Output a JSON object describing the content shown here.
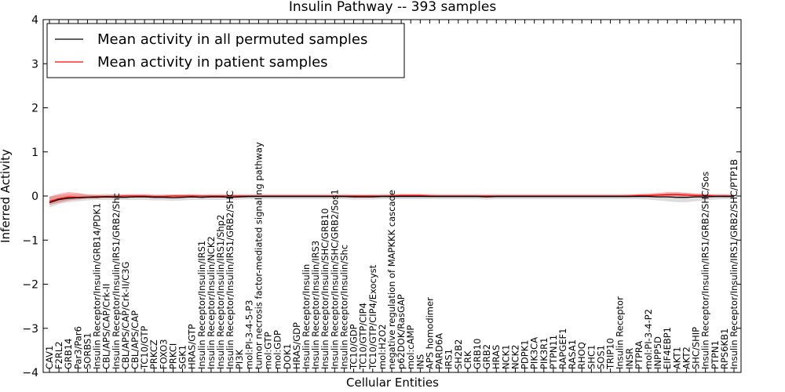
{
  "chart_data": {
    "type": "line",
    "title": "Insulin Pathway -- 393 samples",
    "xlabel": "Cellular Entities",
    "ylabel": "Inferred Activity",
    "ylim": [
      -4,
      4
    ],
    "yticks": [
      -4,
      -3,
      -2,
      -1,
      0,
      1,
      2,
      3,
      4
    ],
    "ytick_labels": [
      "−4",
      "−3",
      "−2",
      "−1",
      "0",
      "1",
      "2",
      "3",
      "4"
    ],
    "legend": {
      "placement": "top-left",
      "entries": [
        {
          "label": "Mean activity in all permuted samples",
          "color": "#000000"
        },
        {
          "label": "Mean activity in patient samples",
          "color": "#ff0000"
        }
      ]
    },
    "categories": [
      "CAV1",
      "F2RL2",
      "GRB14",
      "Par3/Par6",
      "SORBS1",
      "Insulin Receptor/Insulin/GRB14/PDK1",
      "CBL/APS/CAP/Crk-II",
      "Insulin Receptor/Insulin/IRS1/GRB2/Shc",
      "CBL/APS/CAP/Crk-II/C3G",
      "CBL/APS/CAP",
      "TC10/GTP",
      "PRKCZ",
      "FOXO3",
      "PRKCI",
      "SGK1",
      "HRAS/GTP",
      "Insulin Receptor/Insulin/IRS1",
      "Insulin Receptor/Insulin/NCK2",
      "Insulin Receptor/Insulin/IRS1/Shp2",
      "Insulin Receptor/Insulin/IRS1/GRB2/SHC",
      "PI3K",
      "mol:PI-3-4-5-P3",
      "tumor necrosis factor-mediated signaling pathway",
      "mol:GTP",
      "mol:GDP",
      "DOK1",
      "HRAS/GDP",
      "Insulin Receptor/Insulin",
      "Insulin Receptor/Insulin/IRS3",
      "Insulin Receptor/Insulin/SHC/GRB10",
      "Insulin Receptor/Insulin/SHC/GRB2/Sos1",
      "Insulin Receptor/Insulin/Shc",
      "TC10/GDP",
      "TC10/GTP/CIP4",
      "TC10/GTP/CIP4/Exocyst",
      "mol:H2O2",
      "negative regulation of MAPKKK cascade",
      "p62DOK/RasGAP",
      "mol:cAMP",
      "INS",
      "APS homodimer",
      "PARD6A",
      "IRS1",
      "SH2B2",
      "CRK",
      "GRB10",
      "GRB2",
      "HRAS",
      "NCK1",
      "NCK2",
      "PDPK1",
      "PIK3CA",
      "PIK3R1",
      "PTPN11",
      "RAPGEF1",
      "RASA1",
      "RHOQ",
      "SHC1",
      "SOS1",
      "TRIP10",
      "Insulin Receptor",
      "INSR",
      "PTPRA",
      "mol:PI-3-4-P2",
      "INPP5D",
      "EIF4EBP1",
      "AKT1",
      "AKT2",
      "SHC/SHIP",
      "Insulin Receptor/Insulin/IRS1/GRB2/SHC/Sos",
      "PTPN1",
      "RPS6KB1",
      "Insulin Receptor/Insulin/IRS1/GRB2/SHC/PTP1B"
    ],
    "series": [
      {
        "name": "Mean activity in all permuted samples",
        "color": "#000000",
        "values": [
          -0.15,
          -0.08,
          -0.05,
          -0.04,
          -0.03,
          -0.03,
          -0.02,
          -0.03,
          -0.03,
          -0.02,
          -0.02,
          -0.03,
          -0.03,
          -0.04,
          -0.03,
          -0.02,
          -0.03,
          -0.02,
          -0.02,
          -0.03,
          -0.02,
          -0.01,
          -0.01,
          -0.01,
          -0.01,
          -0.01,
          -0.01,
          -0.01,
          -0.01,
          -0.01,
          -0.01,
          -0.01,
          -0.02,
          -0.02,
          -0.02,
          -0.01,
          -0.01,
          -0.01,
          -0.01,
          -0.01,
          -0.01,
          -0.01,
          -0.01,
          -0.01,
          -0.01,
          -0.01,
          -0.02,
          -0.01,
          -0.01,
          -0.01,
          -0.01,
          -0.01,
          -0.01,
          -0.01,
          -0.01,
          -0.01,
          -0.01,
          -0.01,
          -0.01,
          -0.01,
          -0.01,
          -0.01,
          -0.01,
          -0.01,
          -0.02,
          -0.02,
          -0.03,
          -0.03,
          -0.02,
          -0.02,
          -0.01,
          -0.01,
          -0.01
        ],
        "lower": [
          -0.26,
          -0.18,
          -0.14,
          -0.12,
          -0.1,
          -0.09,
          -0.09,
          -0.09,
          -0.09,
          -0.09,
          -0.09,
          -0.1,
          -0.1,
          -0.11,
          -0.1,
          -0.09,
          -0.09,
          -0.09,
          -0.09,
          -0.09,
          -0.08,
          -0.07,
          -0.07,
          -0.07,
          -0.07,
          -0.07,
          -0.07,
          -0.07,
          -0.07,
          -0.07,
          -0.07,
          -0.07,
          -0.08,
          -0.08,
          -0.08,
          -0.07,
          -0.07,
          -0.07,
          -0.07,
          -0.07,
          -0.07,
          -0.07,
          -0.07,
          -0.07,
          -0.07,
          -0.07,
          -0.08,
          -0.07,
          -0.07,
          -0.07,
          -0.07,
          -0.07,
          -0.07,
          -0.07,
          -0.07,
          -0.07,
          -0.07,
          -0.07,
          -0.07,
          -0.07,
          -0.07,
          -0.07,
          -0.07,
          -0.08,
          -0.1,
          -0.12,
          -0.14,
          -0.14,
          -0.12,
          -0.1,
          -0.08,
          -0.07,
          -0.07
        ],
        "upper": [
          0.0,
          0.02,
          0.04,
          0.04,
          0.04,
          0.04,
          0.05,
          0.04,
          0.04,
          0.05,
          0.05,
          0.04,
          0.04,
          0.03,
          0.04,
          0.05,
          0.04,
          0.05,
          0.05,
          0.04,
          0.05,
          0.05,
          0.05,
          0.05,
          0.05,
          0.05,
          0.05,
          0.05,
          0.05,
          0.05,
          0.05,
          0.05,
          0.04,
          0.04,
          0.04,
          0.05,
          0.05,
          0.05,
          0.05,
          0.05,
          0.05,
          0.05,
          0.05,
          0.05,
          0.05,
          0.05,
          0.04,
          0.05,
          0.05,
          0.05,
          0.05,
          0.05,
          0.05,
          0.05,
          0.05,
          0.05,
          0.05,
          0.05,
          0.05,
          0.05,
          0.05,
          0.05,
          0.05,
          0.05,
          0.05,
          0.06,
          0.07,
          0.07,
          0.06,
          0.05,
          0.05,
          0.05,
          0.05
        ]
      },
      {
        "name": "Mean activity in patient samples",
        "color": "#ff0000",
        "values": [
          -0.12,
          -0.06,
          -0.02,
          -0.03,
          -0.02,
          -0.01,
          -0.01,
          -0.01,
          0.0,
          0.0,
          0.0,
          -0.01,
          -0.01,
          0.0,
          0.0,
          0.0,
          0.0,
          0.0,
          0.0,
          0.0,
          0.0,
          0.0,
          0.0,
          0.0,
          0.0,
          0.0,
          0.0,
          0.0,
          0.0,
          0.0,
          0.0,
          0.0,
          0.0,
          0.0,
          0.0,
          0.0,
          0.0,
          0.01,
          0.01,
          0.01,
          0.0,
          0.0,
          0.0,
          0.0,
          0.0,
          0.0,
          0.0,
          0.0,
          0.0,
          0.0,
          0.0,
          0.0,
          0.0,
          0.0,
          0.0,
          0.0,
          0.0,
          0.0,
          0.0,
          0.0,
          0.0,
          0.0,
          0.01,
          0.01,
          0.02,
          0.03,
          0.03,
          0.02,
          0.01,
          0.01,
          0.0,
          0.0,
          0.0
        ],
        "lower": [
          -0.2,
          -0.15,
          -0.1,
          -0.08,
          -0.06,
          -0.05,
          -0.04,
          -0.04,
          -0.03,
          -0.03,
          -0.03,
          -0.04,
          -0.04,
          -0.03,
          -0.03,
          -0.03,
          -0.03,
          -0.03,
          -0.03,
          -0.03,
          -0.03,
          -0.03,
          -0.03,
          -0.03,
          -0.03,
          -0.03,
          -0.03,
          -0.03,
          -0.03,
          -0.03,
          -0.03,
          -0.03,
          -0.03,
          -0.03,
          -0.03,
          -0.03,
          -0.03,
          -0.02,
          -0.02,
          -0.02,
          -0.03,
          -0.03,
          -0.03,
          -0.03,
          -0.03,
          -0.03,
          -0.03,
          -0.03,
          -0.03,
          -0.03,
          -0.03,
          -0.03,
          -0.03,
          -0.03,
          -0.03,
          -0.03,
          -0.03,
          -0.03,
          -0.03,
          -0.03,
          -0.03,
          -0.03,
          -0.02,
          -0.02,
          -0.02,
          -0.01,
          -0.01,
          -0.01,
          -0.02,
          -0.02,
          -0.03,
          -0.03,
          -0.03
        ],
        "upper": [
          -0.02,
          0.05,
          0.09,
          0.07,
          0.03,
          0.02,
          0.02,
          0.03,
          0.03,
          0.03,
          0.03,
          0.02,
          0.02,
          0.03,
          0.03,
          0.03,
          0.02,
          0.02,
          0.02,
          0.02,
          0.02,
          0.02,
          0.02,
          0.02,
          0.02,
          0.02,
          0.02,
          0.02,
          0.02,
          0.02,
          0.02,
          0.02,
          0.02,
          0.02,
          0.02,
          0.02,
          0.03,
          0.04,
          0.04,
          0.04,
          0.03,
          0.02,
          0.02,
          0.02,
          0.02,
          0.02,
          0.02,
          0.02,
          0.02,
          0.02,
          0.02,
          0.02,
          0.02,
          0.02,
          0.02,
          0.02,
          0.02,
          0.02,
          0.02,
          0.02,
          0.02,
          0.03,
          0.04,
          0.05,
          0.07,
          0.09,
          0.09,
          0.07,
          0.05,
          0.04,
          0.03,
          0.03,
          0.02
        ]
      }
    ]
  }
}
